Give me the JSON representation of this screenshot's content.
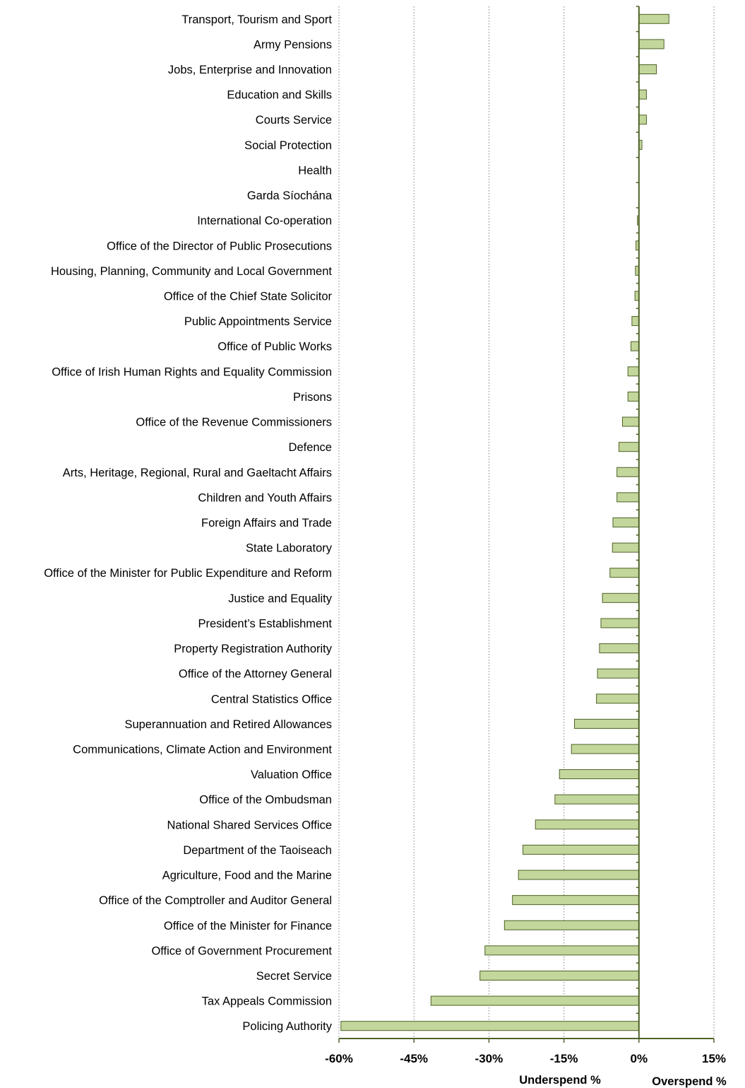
{
  "chart_data": {
    "type": "bar",
    "orientation": "horizontal",
    "categories": [
      "Transport, Tourism and Sport",
      "Army Pensions",
      "Jobs, Enterprise and Innovation",
      "Education and Skills",
      "Courts Service",
      "Social Protection",
      "Health",
      "Garda Síochána",
      "International Co-operation",
      "Office of the Director of Public Prosecutions",
      "Housing, Planning, Community and Local Government",
      "Office of the Chief State Solicitor",
      "Public Appointments Service",
      "Office of Public Works",
      "Office of Irish Human Rights and Equality Commission",
      "Prisons",
      "Office of the Revenue Commissioners",
      "Defence",
      "Arts, Heritage, Regional, Rural and Gaeltacht Affairs",
      "Children and Youth Affairs",
      "Foreign Affairs and Trade",
      "State Laboratory",
      "Office of the Minister for Public Expenditure and Reform",
      "Justice and Equality",
      "President’s Establishment",
      "Property Registration Authority",
      "Office of the Attorney General",
      "Central Statistics Office",
      "Superannuation and Retired Allowances",
      "Communications, Climate Action and Environment",
      "Valuation Office",
      "Office of the Ombudsman",
      "National Shared Services Office",
      "Department of the Taoiseach",
      "Agriculture, Food and the Marine",
      "Office of the Comptroller and Auditor General",
      "Office of the Minister for Finance",
      "Office of Government Procurement",
      "Secret Service",
      "Tax Appeals Commission",
      "Policing Authority"
    ],
    "values": [
      6,
      5,
      3.5,
      1.5,
      1.5,
      0.6,
      0,
      0,
      -0.3,
      -0.6,
      -0.7,
      -0.8,
      -1.4,
      -1.6,
      -2.2,
      -2.2,
      -3.3,
      -4.0,
      -4.4,
      -4.4,
      -5.2,
      -5.3,
      -5.8,
      -7.3,
      -7.6,
      -7.9,
      -8.3,
      -8.5,
      -12.9,
      -13.5,
      -15.9,
      -16.8,
      -20.7,
      -23.2,
      -24.1,
      -25.3,
      -26.9,
      -30.8,
      -31.8,
      -41.6,
      -59.6
    ],
    "xlim": [
      -60,
      15
    ],
    "xticks": [
      "-60%",
      "-45%",
      "-30%",
      "-15%",
      "0%",
      "15%"
    ],
    "xtick_values": [
      -60,
      -45,
      -30,
      -15,
      0,
      15
    ],
    "xlabel_left": "Underspend %",
    "xlabel_right": "Overspend %",
    "grid": "vertical dotted",
    "bar_fill": "#c3d69b",
    "bar_stroke": "#4f6228",
    "axis_color": "#4f6228"
  }
}
